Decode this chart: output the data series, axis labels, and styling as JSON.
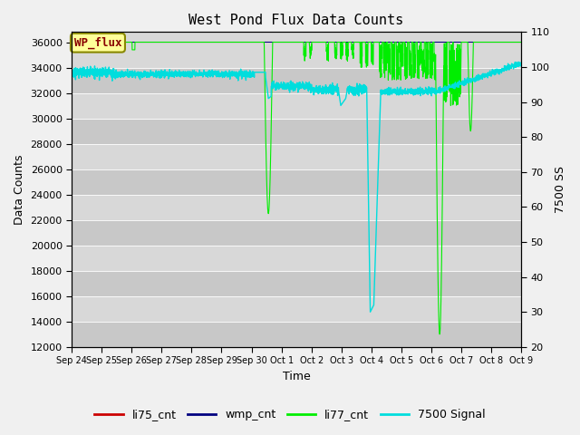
{
  "title": "West Pond Flux Data Counts",
  "xlabel": "Time",
  "ylabel_left": "Data Counts",
  "ylabel_right": "7500 SS",
  "ylim_left": [
    12000,
    36800
  ],
  "ylim_right": [
    20,
    110
  ],
  "yticks_left": [
    12000,
    14000,
    16000,
    18000,
    20000,
    22000,
    24000,
    26000,
    28000,
    30000,
    32000,
    34000,
    36000
  ],
  "yticks_right": [
    20,
    30,
    40,
    50,
    60,
    70,
    80,
    90,
    100,
    110
  ],
  "xtick_labels": [
    "Sep 24",
    "Sep 25",
    "Sep 26",
    "Sep 27",
    "Sep 28",
    "Sep 29",
    "Sep 30",
    "Oct 1",
    "Oct 2",
    "Oct 3",
    "Oct 4",
    "Oct 5",
    "Oct 6",
    "Oct 7",
    "Oct 8",
    "Oct 9"
  ],
  "background_color": "#f0f0f0",
  "plot_bg_color": "#d8d8d8",
  "li77_color": "#00ee00",
  "signal7500_color": "#00dddd",
  "li75_color": "#cc0000",
  "wmp_color": "#000080",
  "legend_entries": [
    "li75_cnt",
    "wmp_cnt",
    "li77_cnt",
    "7500 Signal"
  ],
  "wp_flux_label": "WP_flux",
  "wp_flux_bg": "#ffff99",
  "wp_flux_text_color": "#880000",
  "wp_flux_border": "#888800",
  "n_days": 16
}
